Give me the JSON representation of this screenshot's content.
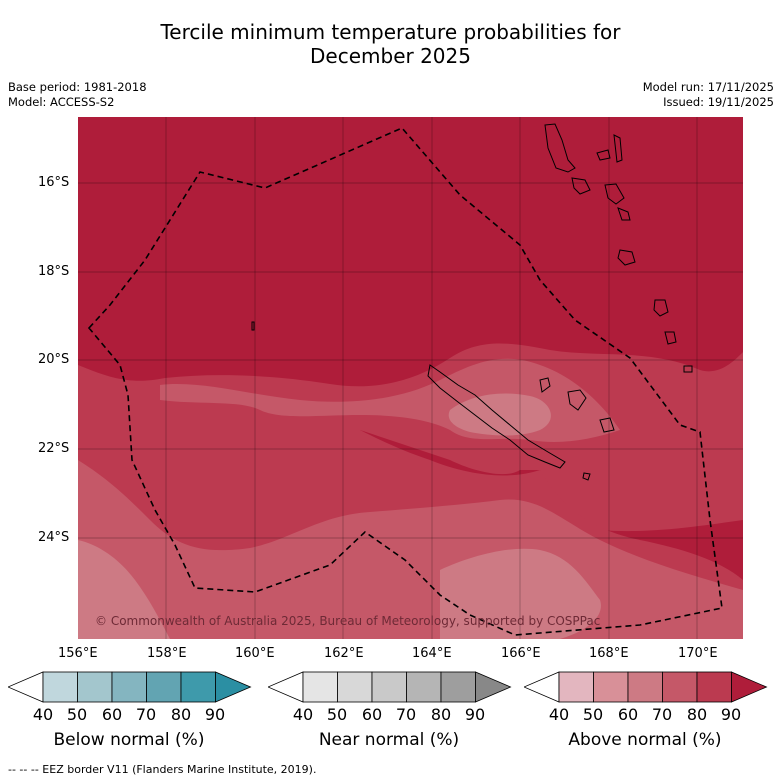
{
  "title_line1": "Tercile minimum temperature probabilities for",
  "title_line2": "December 2025",
  "base_period": "Base period: 1981-2018",
  "model": "Model: ACCESS-S2",
  "model_run": "Model run: 17/11/2025",
  "issued": "Issued: 19/11/2025",
  "lat_labels": [
    "16°S",
    "18°S",
    "20°S",
    "22°S",
    "24°S"
  ],
  "lon_labels": [
    "156°E",
    "158°E",
    "160°E",
    "162°E",
    "164°E",
    "166°E",
    "168°E",
    "170°E"
  ],
  "copyright": "© Commonwealth of Australia 2025, Bureau of Meteorology, supported by COSPPac",
  "footer": "-- -- -- EEZ border V11 (Flanders Marine Institute, 2019).",
  "colorbars": [
    {
      "title": "Below normal (%)",
      "ticks": [
        "40",
        "50",
        "60",
        "70",
        "80",
        "90"
      ],
      "colors": [
        "#ffffff",
        "#c0d7dd",
        "#a3c6cd",
        "#84b5c0",
        "#62a4b2",
        "#3e9aab",
        "#2b8fa3"
      ]
    },
    {
      "title": "Near normal (%)",
      "ticks": [
        "40",
        "50",
        "60",
        "70",
        "80",
        "90"
      ],
      "colors": [
        "#ffffff",
        "#e5e5e5",
        "#d8d8d8",
        "#c9c9c9",
        "#b5b5b5",
        "#9e9e9e",
        "#888888"
      ]
    },
    {
      "title": "Above normal (%)",
      "ticks": [
        "40",
        "50",
        "60",
        "70",
        "80",
        "90"
      ],
      "colors": [
        "#ffffff",
        "#e3b6bf",
        "#d89098",
        "#cd7a84",
        "#c55868",
        "#bb3a50",
        "#af1d3a"
      ]
    }
  ],
  "map_colors": {
    "band_80_90": "#af1d3a",
    "band_70_80": "#bc3a50",
    "band_60_70": "#c55868",
    "band_50_60": "#cd7a84",
    "band_40_50": "#d89098"
  }
}
